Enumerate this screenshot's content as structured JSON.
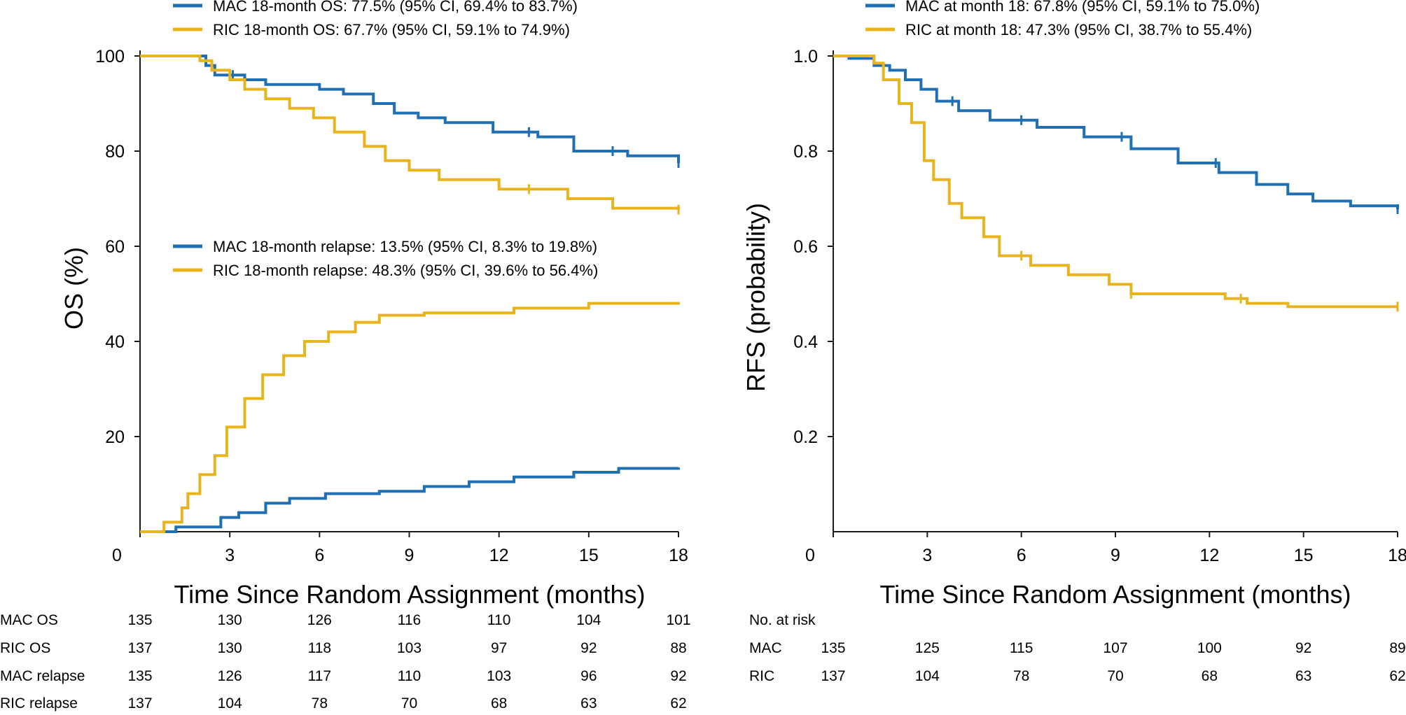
{
  "chart_data": [
    {
      "type": "line",
      "step": true,
      "title": "",
      "xlabel": "Time Since Random Assignment (months)",
      "ylabel": "OS (%)",
      "xlim": [
        0,
        18
      ],
      "ylim": [
        0,
        100
      ],
      "x_ticks": [
        0,
        3,
        6,
        9,
        12,
        15,
        18
      ],
      "x_tick_labels": [
        "0",
        "3",
        "6",
        "9",
        "12",
        "15",
        "18"
      ],
      "y_ticks": [
        20,
        40,
        60,
        80,
        100
      ],
      "y_tick_labels": [
        "20",
        "40",
        "60",
        "80",
        "100"
      ],
      "legend_groups": [
        [
          "MAC 18-month OS: 77.5% (95% CI, 69.4% to 83.7%)",
          "RIC 18-month OS: 67.7% (95% CI, 59.1% to 74.9%)"
        ],
        [
          "MAC 18-month relapse: 13.5% (95% CI, 8.3% to 19.8%)",
          "RIC 18-month relapse: 48.3% (95% CI, 39.6% to 56.4%)"
        ]
      ],
      "series": [
        {
          "name": "MAC OS",
          "color": "#1f6fb4",
          "x": [
            0,
            2.2,
            2.5,
            3.0,
            3.5,
            4.2,
            6.0,
            6.8,
            7.8,
            8.5,
            9.3,
            10.2,
            11.8,
            13.3,
            14.5,
            16.3,
            18
          ],
          "y": [
            100,
            98,
            96,
            96,
            95,
            94,
            93,
            92,
            90,
            88,
            87,
            86,
            84,
            83,
            80,
            79,
            77.5
          ],
          "censor_x": [
            3.1,
            13.0,
            15.8,
            18
          ]
        },
        {
          "name": "RIC OS",
          "color": "#e8b41e",
          "x": [
            0,
            1.7,
            2.0,
            2.4,
            3.0,
            3.5,
            4.2,
            5.0,
            5.8,
            6.5,
            7.5,
            8.2,
            9.0,
            10.0,
            12.0,
            14.3,
            15.8,
            18
          ],
          "y": [
            100,
            100,
            99,
            97,
            95,
            93,
            91,
            89,
            87,
            84,
            81,
            78,
            76,
            74,
            72,
            70,
            68,
            67.7
          ],
          "censor_x": [
            13.0,
            18
          ]
        },
        {
          "name": "MAC relapse",
          "color": "#1f6fb4",
          "x": [
            0,
            1.2,
            2.7,
            3.3,
            4.2,
            5.0,
            6.2,
            8.0,
            9.5,
            11.0,
            12.5,
            14.5,
            16.0,
            18
          ],
          "y": [
            0,
            1,
            3,
            4,
            6,
            7,
            8,
            8.5,
            9.5,
            10.5,
            11.5,
            12.5,
            13.3,
            13.5
          ],
          "censor_x": []
        },
        {
          "name": "RIC relapse",
          "color": "#e8b41e",
          "x": [
            0,
            0.8,
            1.4,
            1.6,
            2.0,
            2.5,
            2.9,
            3.5,
            4.1,
            4.8,
            5.5,
            6.3,
            7.2,
            8.0,
            9.5,
            12.5,
            15.0,
            18
          ],
          "y": [
            0,
            2,
            5,
            8,
            12,
            16,
            22,
            28,
            33,
            37,
            40,
            42,
            44,
            45.5,
            46,
            47,
            48,
            48.3
          ],
          "censor_x": []
        }
      ],
      "risk_table": {
        "times": [
          "0",
          "3",
          "6",
          "9",
          "12",
          "15",
          "18"
        ],
        "rows": [
          {
            "label": "MAC OS",
            "values": [
              "135",
              "130",
              "126",
              "116",
              "110",
              "104",
              "101"
            ]
          },
          {
            "label": "RIC OS",
            "values": [
              "137",
              "130",
              "118",
              "103",
              "97",
              "92",
              "88"
            ]
          },
          {
            "label": "MAC relapse",
            "values": [
              "135",
              "126",
              "117",
              "110",
              "103",
              "96",
              "92"
            ]
          },
          {
            "label": "RIC relapse",
            "values": [
              "137",
              "104",
              "78",
              "70",
              "68",
              "63",
              "62"
            ]
          }
        ]
      }
    },
    {
      "type": "line",
      "step": true,
      "title": "",
      "xlabel": "Time Since Random Assignment (months)",
      "ylabel": "RFS (probability)",
      "xlim": [
        0,
        18
      ],
      "ylim": [
        0,
        1.0
      ],
      "x_ticks": [
        0,
        3,
        6,
        9,
        12,
        15,
        18
      ],
      "x_tick_labels": [
        "0",
        "3",
        "6",
        "9",
        "12",
        "15",
        "18"
      ],
      "y_ticks": [
        0.2,
        0.4,
        0.6,
        0.8,
        1.0
      ],
      "y_tick_labels": [
        "0.2",
        "0.4",
        "0.6",
        "0.8",
        "1.0"
      ],
      "legend_groups": [
        [
          "MAC at month 18: 67.8% (95% CI, 59.1% to 75.0%)",
          "RIC at month 18: 47.3% (95% CI, 38.7% to 55.4%)"
        ]
      ],
      "series": [
        {
          "name": "MAC",
          "color": "#1f6fb4",
          "x": [
            0,
            0.5,
            1.3,
            1.8,
            2.3,
            2.8,
            3.3,
            4.0,
            5.0,
            6.5,
            8.0,
            9.5,
            11.0,
            12.3,
            13.5,
            14.5,
            15.3,
            16.5,
            18
          ],
          "y": [
            1.0,
            0.995,
            0.98,
            0.97,
            0.95,
            0.93,
            0.905,
            0.885,
            0.865,
            0.85,
            0.83,
            0.805,
            0.775,
            0.755,
            0.73,
            0.71,
            0.695,
            0.685,
            0.678
          ],
          "censor_x": [
            3.8,
            6.0,
            9.2,
            12.2,
            18
          ]
        },
        {
          "name": "RIC",
          "color": "#e8b41e",
          "x": [
            0,
            1.3,
            1.6,
            2.1,
            2.5,
            2.9,
            3.2,
            3.7,
            4.1,
            4.8,
            5.3,
            6.3,
            7.5,
            8.8,
            9.5,
            12.5,
            13.2,
            14.5,
            18
          ],
          "y": [
            1.0,
            0.985,
            0.95,
            0.9,
            0.86,
            0.78,
            0.74,
            0.69,
            0.66,
            0.62,
            0.58,
            0.56,
            0.54,
            0.52,
            0.5,
            0.49,
            0.48,
            0.473,
            0.473
          ],
          "censor_x": [
            6.0,
            9.5,
            13.0,
            18
          ]
        }
      ],
      "risk_table": {
        "title": "No. at risk",
        "times": [
          "0",
          "3",
          "6",
          "9",
          "12",
          "15",
          "18"
        ],
        "rows": [
          {
            "label": "MAC",
            "values": [
              "135",
              "125",
              "115",
              "107",
              "100",
              "92",
              "89"
            ]
          },
          {
            "label": "RIC",
            "values": [
              "137",
              "104",
              "78",
              "70",
              "68",
              "63",
              "62"
            ]
          }
        ]
      }
    }
  ]
}
